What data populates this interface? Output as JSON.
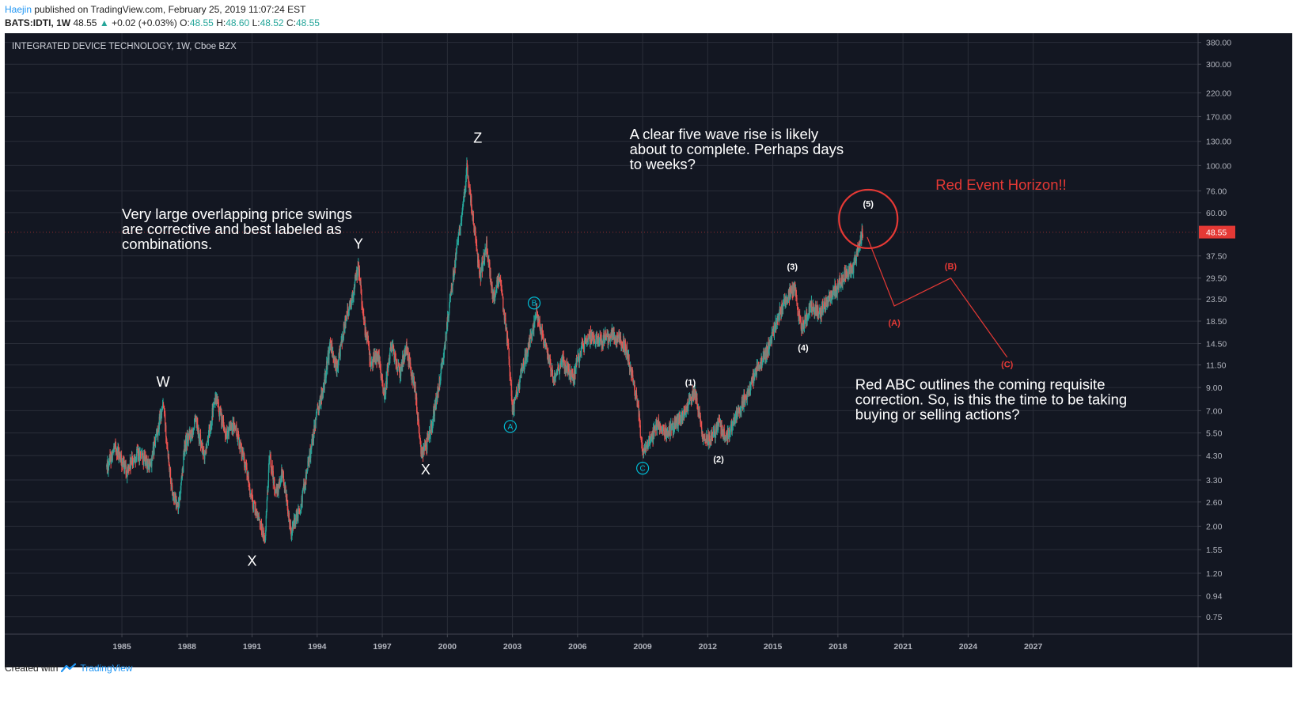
{
  "header": {
    "author": "Haejin",
    "published_text": "published on TradingView.com, February 25, 2019 11:07:24 EST",
    "symbol": "BATS:IDTI, 1W",
    "last": "48.55",
    "change_arrow": "▲",
    "change": "+0.02 (+0.03%)",
    "o_label": "O:",
    "o_val": "48.55",
    "h_label": "H:",
    "h_val": "48.60",
    "l_label": "L:",
    "l_val": "48.52",
    "c_label": "C:",
    "c_val": "48.55"
  },
  "footer": {
    "created_with": "Created with",
    "brand": "TradingView"
  },
  "chart_data": {
    "type": "candlestick",
    "title": "INTEGRATED DEVICE TECHNOLOGY, 1W, Cboe BZX",
    "y_scale": "log",
    "y_ticks": [
      380.0,
      300.0,
      220.0,
      170.0,
      130.0,
      100.0,
      76.0,
      60.0,
      37.5,
      29.5,
      23.5,
      18.5,
      14.5,
      11.5,
      9.0,
      7.0,
      5.5,
      4.3,
      3.3,
      2.6,
      2.0,
      1.55,
      1.2,
      0.94,
      0.75
    ],
    "y_tick_labels": [
      "380.00",
      "300.00",
      "220.00",
      "170.00",
      "130.00",
      "100.00",
      "76.00",
      "60.00",
      "37.50",
      "29.50",
      "23.50",
      "18.50",
      "14.50",
      "11.50",
      "9.00",
      "7.00",
      "5.50",
      "4.30",
      "3.30",
      "2.60",
      "2.00",
      "1.55",
      "1.20",
      "0.94",
      "0.75"
    ],
    "ylim": [
      0.62,
      420
    ],
    "x_ticks": [
      1985,
      1988,
      1991,
      1994,
      1997,
      2000,
      2003,
      2006,
      2009,
      2012,
      2015,
      2018,
      2021,
      2024,
      2027
    ],
    "x_tick_labels": [
      "1985",
      "1988",
      "1991",
      "1994",
      "1997",
      "2000",
      "2003",
      "2006",
      "2009",
      "2012",
      "2015",
      "2018",
      "2021",
      "2024",
      "2027"
    ],
    "xlim": [
      1979.6,
      2034.6
    ],
    "grid": true,
    "last_price_label": "48.55",
    "price_path": [
      [
        1984.3,
        3.8
      ],
      [
        1984.7,
        4.7
      ],
      [
        1985.2,
        3.6
      ],
      [
        1985.7,
        4.4
      ],
      [
        1986.3,
        3.8
      ],
      [
        1986.9,
        7.6
      ],
      [
        1987.3,
        3.0
      ],
      [
        1987.6,
        2.4
      ],
      [
        1987.9,
        4.8
      ],
      [
        1988.4,
        6.2
      ],
      [
        1988.8,
        4.2
      ],
      [
        1989.3,
        8.0
      ],
      [
        1989.8,
        5.4
      ],
      [
        1990.2,
        5.9
      ],
      [
        1990.6,
        4.3
      ],
      [
        1991.0,
        2.6
      ],
      [
        1991.3,
        2.2
      ],
      [
        1991.6,
        1.7
      ],
      [
        1991.8,
        4.4
      ],
      [
        1992.1,
        2.8
      ],
      [
        1992.4,
        3.6
      ],
      [
        1992.8,
        1.9
      ],
      [
        1993.2,
        2.4
      ],
      [
        1993.6,
        4.0
      ],
      [
        1994.0,
        6.8
      ],
      [
        1994.3,
        9.0
      ],
      [
        1994.6,
        14.5
      ],
      [
        1994.9,
        11.0
      ],
      [
        1995.3,
        18.5
      ],
      [
        1995.6,
        24.0
      ],
      [
        1995.9,
        33.0
      ],
      [
        1996.2,
        17.0
      ],
      [
        1996.5,
        11.5
      ],
      [
        1996.8,
        13.0
      ],
      [
        1997.1,
        8.2
      ],
      [
        1997.4,
        14.5
      ],
      [
        1997.8,
        10.5
      ],
      [
        1998.1,
        14.0
      ],
      [
        1998.5,
        9.0
      ],
      [
        1998.8,
        4.3
      ],
      [
        1999.1,
        5.0
      ],
      [
        1999.4,
        7.0
      ],
      [
        1999.8,
        12.0
      ],
      [
        2000.1,
        22.0
      ],
      [
        2000.4,
        38.0
      ],
      [
        2000.7,
        60.0
      ],
      [
        2000.9,
        98.0
      ],
      [
        2001.2,
        55.0
      ],
      [
        2001.5,
        30.0
      ],
      [
        2001.8,
        42.0
      ],
      [
        2002.1,
        24.0
      ],
      [
        2002.4,
        30.0
      ],
      [
        2002.8,
        14.0
      ],
      [
        2003.0,
        7.0
      ],
      [
        2003.4,
        10.5
      ],
      [
        2003.8,
        15.0
      ],
      [
        2004.1,
        20.0
      ],
      [
        2004.5,
        14.0
      ],
      [
        2004.9,
        10.0
      ],
      [
        2005.3,
        12.0
      ],
      [
        2005.8,
        10.0
      ],
      [
        2006.2,
        14.0
      ],
      [
        2006.6,
        15.5
      ],
      [
        2007.1,
        15.0
      ],
      [
        2007.6,
        16.0
      ],
      [
        2008.2,
        14.0
      ],
      [
        2008.6,
        9.5
      ],
      [
        2008.8,
        7.0
      ],
      [
        2009.0,
        4.2
      ],
      [
        2009.3,
        5.0
      ],
      [
        2009.7,
        6.0
      ],
      [
        2010.2,
        5.5
      ],
      [
        2010.7,
        6.5
      ],
      [
        2011.1,
        7.5
      ],
      [
        2011.4,
        8.5
      ],
      [
        2011.8,
        5.2
      ],
      [
        2012.1,
        5.0
      ],
      [
        2012.5,
        6.0
      ],
      [
        2012.9,
        5.2
      ],
      [
        2013.3,
        6.5
      ],
      [
        2013.8,
        8.5
      ],
      [
        2014.3,
        11.0
      ],
      [
        2014.8,
        14.0
      ],
      [
        2015.3,
        20.0
      ],
      [
        2015.7,
        24.0
      ],
      [
        2016.0,
        27.0
      ],
      [
        2016.3,
        17.0
      ],
      [
        2016.8,
        22.0
      ],
      [
        2017.2,
        20.0
      ],
      [
        2017.6,
        24.0
      ],
      [
        2017.9,
        26.0
      ],
      [
        2018.3,
        30.0
      ],
      [
        2018.7,
        33.0
      ],
      [
        2018.95,
        42.0
      ],
      [
        2019.15,
        48.55
      ]
    ],
    "projection_abc": [
      [
        2019.35,
        46.0
      ],
      [
        2020.6,
        21.8
      ],
      [
        2023.2,
        29.5
      ],
      [
        2025.8,
        12.5
      ]
    ],
    "wave_labels": [
      {
        "text": "W",
        "x": 1986.9,
        "y": 9.1,
        "color": "#ffffff",
        "circled": false
      },
      {
        "text": "X",
        "x": 1991.0,
        "y": 1.3,
        "color": "#ffffff",
        "circled": false
      },
      {
        "text": "Y",
        "x": 1995.9,
        "y": 40.5,
        "color": "#ffffff",
        "circled": false
      },
      {
        "text": "X",
        "x": 1999.0,
        "y": 3.5,
        "color": "#ffffff",
        "circled": false
      },
      {
        "text": "Z",
        "x": 2001.4,
        "y": 128.0,
        "color": "#ffffff",
        "circled": false
      },
      {
        "text": "A",
        "x": 2002.9,
        "y": 5.9,
        "color": "#00bcd4",
        "circled": true
      },
      {
        "text": "B",
        "x": 2004.0,
        "y": 22.5,
        "color": "#00bcd4",
        "circled": true
      },
      {
        "text": "C",
        "x": 2009.0,
        "y": 3.75,
        "color": "#00bcd4",
        "circled": true
      },
      {
        "text": "(1)",
        "x": 2011.2,
        "y": 9.2,
        "color": "#ffffff",
        "circled": false
      },
      {
        "text": "(2)",
        "x": 2012.5,
        "y": 4.0,
        "color": "#ffffff",
        "circled": false
      },
      {
        "text": "(3)",
        "x": 2015.9,
        "y": 32.3,
        "color": "#ffffff",
        "circled": false
      },
      {
        "text": "(4)",
        "x": 2016.4,
        "y": 13.4,
        "color": "#ffffff",
        "circled": false
      },
      {
        "text": "(5)",
        "x": 2019.4,
        "y": 64.0,
        "color": "#ffffff",
        "circled": false
      },
      {
        "text": "(A)",
        "x": 2020.6,
        "y": 17.6,
        "color": "#e53935",
        "circled": false
      },
      {
        "text": "(B)",
        "x": 2023.2,
        "y": 32.5,
        "color": "#e53935",
        "circled": false
      },
      {
        "text": "(C)",
        "x": 2025.8,
        "y": 11.2,
        "color": "#e53935",
        "circled": false
      }
    ],
    "event_horizon_circle": {
      "x": 2019.4,
      "y": 56.0,
      "color": "#e53935"
    },
    "annotations": [
      {
        "lines": [
          "Very large overlapping price swings",
          "are corrective and best labeled as",
          "combinations."
        ],
        "x": 1985.0,
        "y": 56.0,
        "color": "#ffffff"
      },
      {
        "lines": [
          "A clear five wave rise is likely",
          "about to complete. Perhaps days",
          "to weeks?"
        ],
        "x": 2008.4,
        "y": 133.0,
        "color": "#ffffff"
      },
      {
        "lines": [
          "Red Event Horizon!!"
        ],
        "x": 2022.5,
        "y": 77.0,
        "color": "#e53935"
      },
      {
        "lines": [
          "Red ABC outlines the coming requisite",
          "correction. So, is this the time to be taking",
          "buying or selling actions?"
        ],
        "x": 2018.8,
        "y": 8.8,
        "color": "#ffffff"
      }
    ],
    "colors": {
      "background": "#131722",
      "grid": "#2a2e39",
      "axis_text": "#b2b5be",
      "up": "#26a69a",
      "down": "#ef5350",
      "price_label_bg": "#e53935"
    }
  }
}
